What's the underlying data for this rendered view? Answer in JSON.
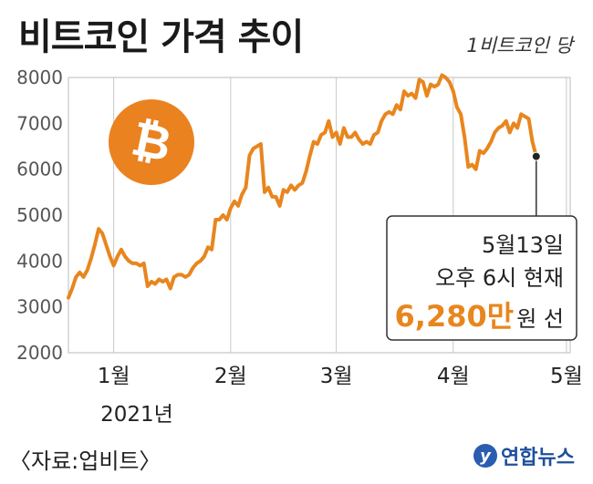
{
  "title": "비트코인 가격 추이",
  "unit_label": "1비트코인 당",
  "source": "〈자료:업비트〉",
  "brand": {
    "mark": "y",
    "name": "연합뉴스"
  },
  "colors": {
    "line": "#e8861e",
    "grid": "#bbbbbb",
    "coin": "#ea8220",
    "brand": "#1d4f9c",
    "highlight": "#e8861e"
  },
  "icon": "bitcoin-coin-icon",
  "annotation": {
    "line1": "5월13일",
    "line2": "오후 6시 현재",
    "value": "6,280만",
    "value_suffix": "원 선"
  },
  "chart_data": {
    "type": "line",
    "title": "비트코인 가격 추이",
    "ylabel": "",
    "xlabel": "",
    "ylim": [
      2000,
      8000
    ],
    "yticks": [
      2000,
      3000,
      4000,
      5000,
      6000,
      7000,
      8000
    ],
    "xlim": [
      0,
      133
    ],
    "x_tick_labels": [
      {
        "label": "1월",
        "x": 12
      },
      {
        "label": "2월",
        "x": 43
      },
      {
        "label": "3월",
        "x": 71
      },
      {
        "label": "4월",
        "x": 102
      },
      {
        "label": "5월",
        "x": 132
      }
    ],
    "year_label": "2021년",
    "grid": "vertical",
    "series": [
      {
        "values": [
          [
            0,
            3200
          ],
          [
            1,
            3400
          ],
          [
            2,
            3650
          ],
          [
            3,
            3750
          ],
          [
            4,
            3650
          ],
          [
            5,
            3800
          ],
          [
            6,
            4050
          ],
          [
            7,
            4350
          ],
          [
            8,
            4700
          ],
          [
            9,
            4600
          ],
          [
            10,
            4350
          ],
          [
            11,
            4100
          ],
          [
            12,
            3900
          ],
          [
            13,
            4100
          ],
          [
            14,
            4250
          ],
          [
            15,
            4100
          ],
          [
            16,
            4000
          ],
          [
            17,
            3950
          ],
          [
            18,
            3950
          ],
          [
            19,
            3900
          ],
          [
            20,
            3950
          ],
          [
            21,
            3450
          ],
          [
            22,
            3550
          ],
          [
            23,
            3500
          ],
          [
            24,
            3600
          ],
          [
            25,
            3550
          ],
          [
            26,
            3600
          ],
          [
            27,
            3400
          ],
          [
            28,
            3650
          ],
          [
            29,
            3700
          ],
          [
            30,
            3700
          ],
          [
            31,
            3650
          ],
          [
            32,
            3700
          ],
          [
            33,
            3850
          ],
          [
            34,
            3950
          ],
          [
            35,
            4000
          ],
          [
            36,
            4100
          ],
          [
            37,
            4300
          ],
          [
            38,
            4250
          ],
          [
            39,
            4900
          ],
          [
            40,
            4900
          ],
          [
            41,
            5000
          ],
          [
            42,
            4900
          ],
          [
            43,
            5150
          ],
          [
            44,
            5300
          ],
          [
            45,
            5200
          ],
          [
            46,
            5450
          ],
          [
            47,
            5600
          ],
          [
            48,
            6300
          ],
          [
            49,
            6450
          ],
          [
            50,
            6500
          ],
          [
            51,
            6550
          ],
          [
            52,
            5500
          ],
          [
            53,
            5600
          ],
          [
            54,
            5400
          ],
          [
            55,
            5400
          ],
          [
            56,
            5200
          ],
          [
            57,
            5550
          ],
          [
            58,
            5500
          ],
          [
            59,
            5650
          ],
          [
            60,
            5550
          ],
          [
            61,
            5650
          ],
          [
            62,
            5700
          ],
          [
            63,
            5950
          ],
          [
            64,
            6300
          ],
          [
            65,
            6600
          ],
          [
            66,
            6550
          ],
          [
            67,
            6750
          ],
          [
            68,
            6800
          ],
          [
            69,
            7050
          ],
          [
            70,
            6700
          ],
          [
            71,
            6800
          ],
          [
            72,
            6550
          ],
          [
            73,
            6900
          ],
          [
            74,
            6700
          ],
          [
            75,
            6700
          ],
          [
            76,
            6800
          ],
          [
            77,
            6650
          ],
          [
            78,
            6550
          ],
          [
            79,
            6600
          ],
          [
            80,
            6550
          ],
          [
            81,
            6750
          ],
          [
            82,
            6800
          ],
          [
            83,
            7050
          ],
          [
            84,
            7200
          ],
          [
            85,
            7250
          ],
          [
            86,
            7200
          ],
          [
            87,
            7400
          ],
          [
            88,
            7300
          ],
          [
            89,
            7700
          ],
          [
            90,
            7600
          ],
          [
            91,
            7650
          ],
          [
            92,
            7550
          ],
          [
            93,
            7950
          ],
          [
            94,
            7900
          ],
          [
            95,
            7600
          ],
          [
            96,
            7850
          ],
          [
            97,
            7800
          ],
          [
            98,
            7850
          ],
          [
            99,
            8050
          ],
          [
            100,
            8000
          ],
          [
            101,
            7900
          ],
          [
            102,
            7700
          ],
          [
            103,
            7350
          ],
          [
            104,
            7200
          ],
          [
            105,
            6700
          ],
          [
            106,
            6050
          ],
          [
            107,
            6100
          ],
          [
            108,
            6000
          ],
          [
            109,
            6400
          ],
          [
            110,
            6350
          ],
          [
            111,
            6450
          ],
          [
            112,
            6600
          ],
          [
            113,
            6800
          ],
          [
            114,
            6900
          ],
          [
            115,
            6950
          ],
          [
            116,
            7050
          ],
          [
            117,
            6800
          ],
          [
            118,
            7000
          ],
          [
            119,
            6900
          ],
          [
            120,
            7200
          ],
          [
            121,
            7150
          ],
          [
            122,
            7100
          ],
          [
            123,
            6600
          ],
          [
            124,
            6280
          ]
        ]
      }
    ],
    "last_point": [
      124,
      6280
    ]
  }
}
